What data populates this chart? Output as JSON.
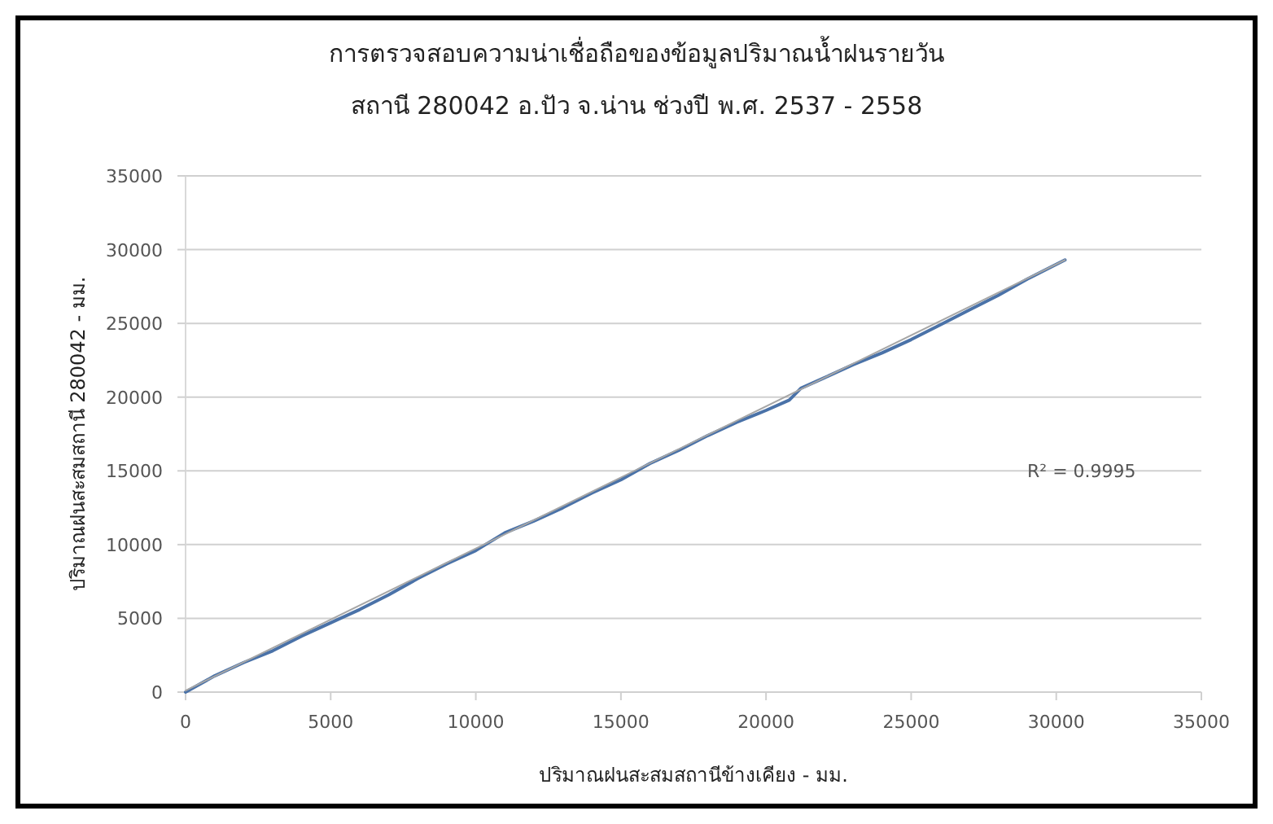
{
  "chart_data": {
    "type": "line",
    "title": "การตรวจสอบความน่าเชื่อถือของข้อมูลปริมาณน้ำฝนรายวัน",
    "subtitle": "สถานี 280042 อ.ปัว จ.น่าน ช่วงปี พ.ศ. 2537 - 2558",
    "xlabel": "ปริมาณฝนสะสมสถานีข้างเคียง - มม.",
    "ylabel": "ปริมาณฝนสะสมสถานี 280042 - มม.",
    "x": [
      0,
      1000,
      2000,
      3000,
      4000,
      5000,
      6000,
      7000,
      8000,
      9000,
      10000,
      11000,
      12000,
      13000,
      14000,
      15000,
      16000,
      17000,
      18000,
      19000,
      20000,
      20800,
      21200,
      22000,
      23000,
      24000,
      25000,
      26000,
      27000,
      28000,
      29000,
      30300
    ],
    "series": [
      {
        "type": "line",
        "color": "#4a72a8",
        "values": [
          0,
          1100,
          2000,
          2800,
          3800,
          4700,
          5600,
          6600,
          7700,
          8700,
          9600,
          10800,
          11600,
          12500,
          13500,
          14400,
          15500,
          16400,
          17400,
          18300,
          19100,
          19800,
          20600,
          21300,
          22200,
          23000,
          23900,
          24900,
          25900,
          26900,
          28000,
          29300
        ]
      },
      {
        "type": "line",
        "color": "#a6a6a6",
        "x": [
          0,
          30300
        ],
        "values": [
          100,
          29300
        ]
      }
    ],
    "annotations": [
      "R² = 0.9995"
    ],
    "xlim": [
      0,
      35000
    ],
    "xticks": [
      0,
      5000,
      10000,
      15000,
      20000,
      25000,
      30000,
      35000
    ],
    "ylim": [
      0,
      35000
    ],
    "yticks": [
      0,
      5000,
      10000,
      15000,
      20000,
      25000,
      30000,
      35000
    ],
    "grid": "y",
    "marker": "none",
    "line_style": "solid"
  }
}
